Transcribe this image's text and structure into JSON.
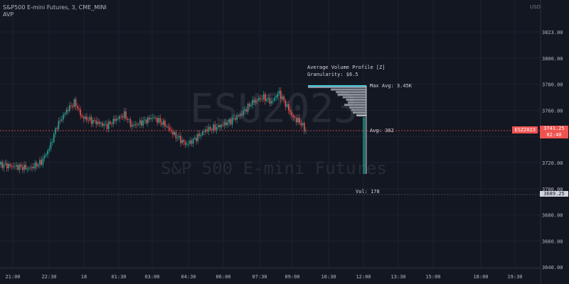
{
  "header": {
    "symbol_line": "S&P500 E-mini Futures, 3, CME_MINI",
    "indicator": "AVP"
  },
  "watermark": {
    "ticker": "ESU2023",
    "name": "S&P 500 E-mini Futures"
  },
  "currency": "USD",
  "colors": {
    "bg": "#131722",
    "up": "#26a69a",
    "down": "#ef5350",
    "grid": "#1e222d",
    "profile": "#b2b5be",
    "accent": "#4dd0e1"
  },
  "profile": {
    "title": "Average Volume Profile [Z]",
    "granularity": "Granularity: $6.5",
    "max_avg": "Max Avg: 3.45K",
    "avg": "Avg: 382",
    "vol": "Vol: 178"
  },
  "last_price_tag": {
    "symbol": "ESZ2023",
    "price": "3741.25",
    "countdown": "02:40"
  },
  "marker_price": "3689.25",
  "chart_data": {
    "type": "candlestick",
    "y_ticks": [
      "3823.00",
      "3800.00",
      "3780.00",
      "3760.00",
      "3740.00",
      "3720.00",
      "3700.00",
      "3680.00",
      "3660.00",
      "3640.00"
    ],
    "x_ticks": [
      "21:00",
      "22:30",
      "18",
      "01:30",
      "03:00",
      "04:30",
      "06:00",
      "07:30",
      "09:00",
      "10:30",
      "12:00",
      "13:30",
      "15:00",
      "18:00",
      "19:30"
    ],
    "ylim": [
      3630,
      3840
    ],
    "last_price": 3741.25,
    "anchors": [
      [
        0,
        3714
      ],
      [
        15,
        3713
      ],
      [
        30,
        3712
      ],
      [
        42,
        3711
      ],
      [
        58,
        3716
      ],
      [
        70,
        3728
      ],
      [
        80,
        3745
      ],
      [
        93,
        3757
      ],
      [
        105,
        3764
      ],
      [
        115,
        3752
      ],
      [
        135,
        3748
      ],
      [
        150,
        3745
      ],
      [
        162,
        3750
      ],
      [
        175,
        3754
      ],
      [
        185,
        3745
      ],
      [
        200,
        3748
      ],
      [
        215,
        3752
      ],
      [
        232,
        3746
      ],
      [
        245,
        3738
      ],
      [
        262,
        3730
      ],
      [
        275,
        3735
      ],
      [
        290,
        3742
      ],
      [
        305,
        3744
      ],
      [
        322,
        3748
      ],
      [
        340,
        3755
      ],
      [
        355,
        3764
      ],
      [
        370,
        3768
      ],
      [
        382,
        3764
      ],
      [
        392,
        3772
      ],
      [
        402,
        3762
      ],
      [
        412,
        3752
      ],
      [
        422,
        3748
      ],
      [
        430,
        3741
      ]
    ],
    "volume_profile": {
      "prices": [
        3772,
        3770,
        3768,
        3766,
        3764,
        3762,
        3760,
        3758,
        3756,
        3754,
        3752,
        3750
      ],
      "avg_volume": [
        3450,
        2100,
        1800,
        1700,
        1400,
        1200,
        1100,
        1300,
        1000,
        900,
        800,
        600
      ]
    }
  }
}
